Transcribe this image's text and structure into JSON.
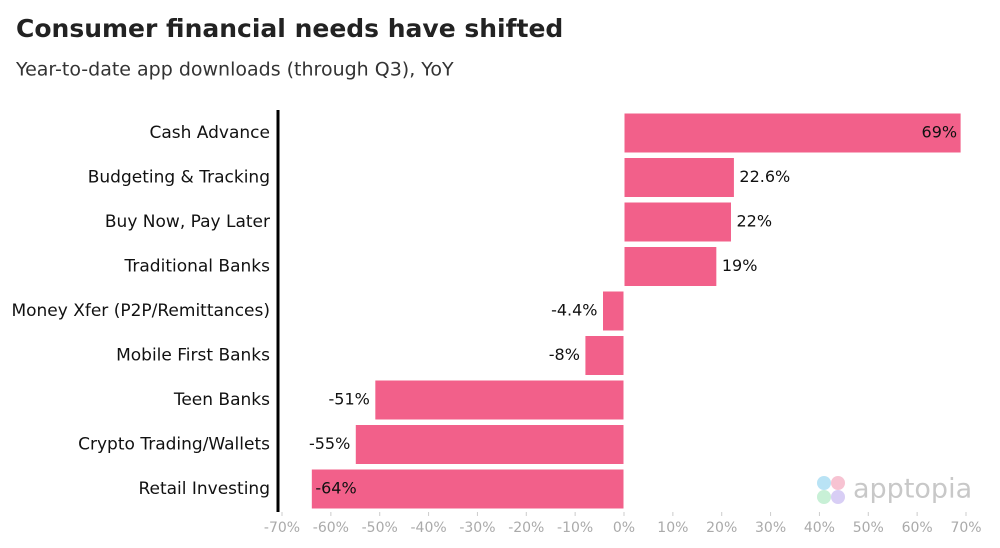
{
  "chart_data": {
    "type": "barh",
    "title": "Consumer financial needs have shifted",
    "subtitle": "Year-to-date app downloads (through Q3), YoY",
    "categories": [
      "Cash Advance",
      "Budgeting & Tracking",
      "Buy Now, Pay Later",
      "Traditional Banks",
      "Money Xfer (P2P/Remittances)",
      "Mobile First Banks",
      "Teen Banks",
      "Crypto Trading/Wallets",
      "Retail Investing"
    ],
    "values": [
      69,
      22.6,
      22,
      19,
      -4.4,
      -8,
      -51,
      -55,
      -64
    ],
    "value_labels": [
      "69%",
      "22.6%",
      "22%",
      "19%",
      "-4.4%",
      "-8%",
      "-51%",
      "-55%",
      "-64%"
    ],
    "color": "#f2608a",
    "xlim": [
      -70,
      70
    ],
    "xticks": [
      {
        "value": -70,
        "label": "-70%"
      },
      {
        "value": -60,
        "label": "-60%"
      },
      {
        "value": -50,
        "label": "-50%"
      },
      {
        "value": -40,
        "label": "-40%"
      },
      {
        "value": -30,
        "label": "-30%"
      },
      {
        "value": -20,
        "label": "-20%"
      },
      {
        "value": -10,
        "label": "-10%"
      },
      {
        "value": 0,
        "label": "0%"
      },
      {
        "value": 10,
        "label": "10%"
      },
      {
        "value": 20,
        "label": "20%"
      },
      {
        "value": 30,
        "label": "30%"
      },
      {
        "value": 40,
        "label": "40%"
      },
      {
        "value": 50,
        "label": "50%"
      },
      {
        "value": 60,
        "label": "60%"
      },
      {
        "value": 70,
        "label": "70%"
      }
    ],
    "watermark": "apptopia"
  }
}
